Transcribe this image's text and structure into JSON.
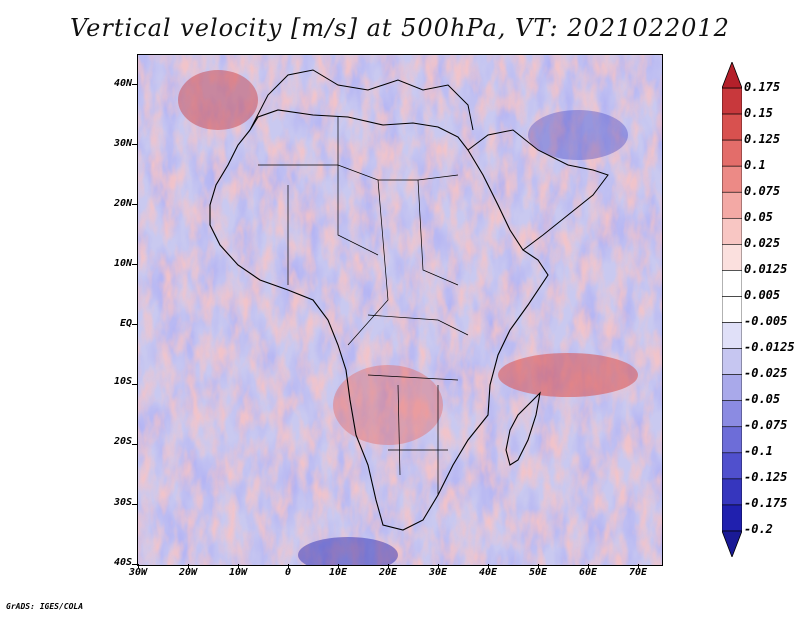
{
  "title": "Vertical velocity [m/s] at 500hPa, VT: 2021022012",
  "footer": "GrADS: IGES/COLA",
  "map": {
    "region": "Africa",
    "projection": "lat-lon",
    "lon_range": [
      -30,
      75
    ],
    "lat_range": [
      -40,
      45
    ],
    "lat_ticks": [
      "40N",
      "30N",
      "20N",
      "10N",
      "EQ",
      "10S",
      "20S",
      "30S",
      "40S"
    ],
    "lon_ticks": [
      "30W",
      "20W",
      "10W",
      "0",
      "10E",
      "20E",
      "30E",
      "40E",
      "50E",
      "60E",
      "70E"
    ]
  },
  "colorbar": {
    "labels": [
      "0.175",
      "0.15",
      "0.125",
      "0.1",
      "0.075",
      "0.05",
      "0.025",
      "0.0125",
      "0.005",
      "-0.005",
      "-0.0125",
      "-0.025",
      "-0.05",
      "-0.075",
      "-0.1",
      "-0.125",
      "-0.175",
      "-0.2"
    ],
    "colors": [
      "#b4202a",
      "#c8383c",
      "#d8514f",
      "#e36d6a",
      "#ec8a86",
      "#f3a9a5",
      "#f8c6c3",
      "#fbe0de",
      "#ffffff",
      "#ffffff",
      "#e0e0f8",
      "#c6c6f1",
      "#a9a9ea",
      "#8b8be2",
      "#6d6dd8",
      "#5050cd",
      "#3636be",
      "#2020ae",
      "#1a1a96"
    ]
  }
}
